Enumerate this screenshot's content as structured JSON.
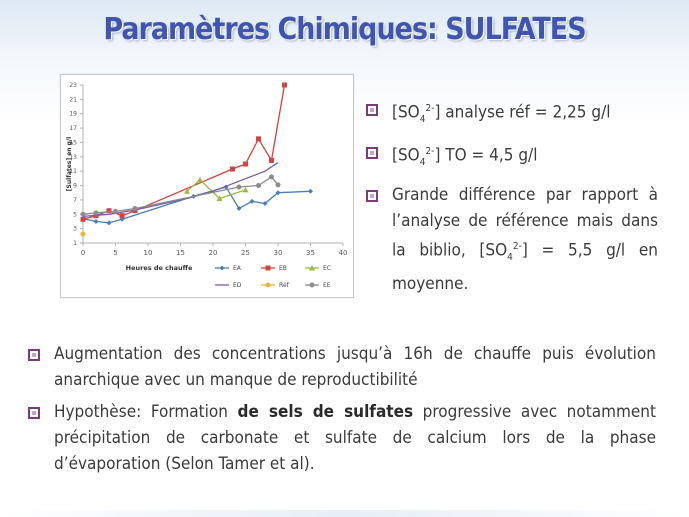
{
  "title": "Paramètres Chimiques: SULFATES",
  "right_bullets": [
    {
      "prefix": "[SO",
      "sub": "4",
      "sup": "2-",
      "suffix": "] analyse réf = 2,25 g/l"
    },
    {
      "prefix": "[SO",
      "sub": "4",
      "sup": "2-",
      "suffix": "] TO = 4,5 g/l"
    },
    {
      "line1": "Grande différence par rapport à l’analyse de référence mais dans la biblio,",
      "prefix": " [SO",
      "sub": "4",
      "sup": "2-",
      "suffix": "] = 5,5 g/l en moyenne."
    }
  ],
  "bottom_bullets": [
    {
      "text": "Augmentation des concentrations jusqu’à 16h de chauffe puis évolution anarchique avec un manque de reproductibilité"
    },
    {
      "pre": "Hypothèse: Formation ",
      "bold": "de sels de sulfates",
      "post": " progressive avec notamment précipitation de carbonate et sulfate de calcium lors de la phase d’évaporation (Selon Tamer et al)."
    }
  ],
  "chart_data": {
    "type": "line",
    "xlabel": "Heures de chauffe",
    "ylabel": "[Sulfates] en g/l",
    "xlim": [
      0,
      40
    ],
    "ylim": [
      1,
      23
    ],
    "xticks": [
      0,
      5,
      10,
      15,
      20,
      25,
      30,
      35,
      40
    ],
    "yticks": [
      1,
      3,
      5,
      7,
      9,
      11,
      13,
      15,
      17,
      19,
      21,
      23
    ],
    "legend_position": "bottom",
    "series": [
      {
        "name": "EA",
        "color": "#4a7ebb",
        "marker": "diamond",
        "x": [
          0,
          2,
          4,
          6,
          17,
          22,
          24,
          26,
          28,
          30,
          35
        ],
        "y": [
          4.4,
          4.0,
          3.8,
          4.3,
          7.5,
          8.8,
          5.8,
          6.8,
          6.5,
          8.0,
          8.2
        ]
      },
      {
        "name": "EB",
        "color": "#d9413d",
        "marker": "square",
        "x": [
          0,
          2,
          4,
          6,
          8,
          23,
          25,
          27,
          29,
          31
        ],
        "y": [
          4.3,
          4.8,
          5.5,
          4.8,
          5.5,
          11.3,
          12.0,
          15.5,
          12.5,
          23.0
        ]
      },
      {
        "name": "EC",
        "color": "#9bbb3a",
        "marker": "triangle",
        "x": [
          16,
          18,
          21,
          25
        ],
        "y": [
          8.2,
          9.8,
          7.2,
          8.4
        ]
      },
      {
        "name": "ED",
        "color": "#7b5ba8",
        "marker": "none",
        "x": [
          0,
          4,
          8,
          12,
          16,
          20,
          24,
          28,
          30
        ],
        "y": [
          4.7,
          5.0,
          5.6,
          6.4,
          7.2,
          8.2,
          9.6,
          11.0,
          12.2
        ]
      },
      {
        "name": "Réf",
        "color": "#f2b134",
        "marker": "circle",
        "x": [
          0
        ],
        "y": [
          2.25
        ]
      },
      {
        "name": "EE",
        "color": "#8c8c8c",
        "marker": "circle",
        "x": [
          0,
          2,
          5,
          8,
          24,
          27,
          29,
          30
        ],
        "y": [
          5.0,
          5.2,
          5.4,
          5.8,
          8.8,
          9.0,
          10.2,
          9.1
        ]
      }
    ]
  }
}
